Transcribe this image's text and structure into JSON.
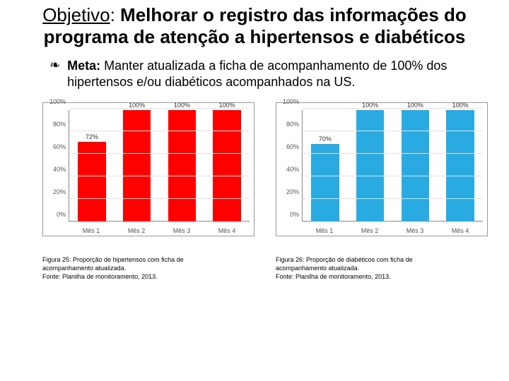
{
  "title": {
    "prefix": "Objetivo",
    "separator": ": ",
    "main": "Melhorar o registro das informações do programa de atenção a hipertensos e diabéticos"
  },
  "meta": {
    "bullet": "❧",
    "label": "Meta: ",
    "text": "Manter atualizada a ficha de acompanhamento de 100% dos hipertensos e/ou diabéticos acompanhados na US."
  },
  "yaxis": {
    "ticks": [
      "0%",
      "20%",
      "40%",
      "60%",
      "80%",
      "100%"
    ],
    "max": 100
  },
  "chart_left": {
    "type": "bar",
    "bar_color": "#ff0000",
    "label_color": "#333333",
    "grid_color": "#e2e2e2",
    "border_color": "#999999",
    "categories": [
      "Mês 1",
      "Mês 2",
      "Mês 3",
      "Mês 4"
    ],
    "values": [
      72,
      100,
      100,
      100
    ],
    "value_labels": [
      "72%",
      "100%",
      "100%",
      "100%"
    ]
  },
  "chart_right": {
    "type": "bar",
    "bar_color": "#29abe2",
    "label_color": "#333333",
    "grid_color": "#e2e2e2",
    "border_color": "#999999",
    "categories": [
      "Mês 1",
      "Mês 2",
      "Mês 3",
      "Mês 4"
    ],
    "values": [
      70,
      100,
      100,
      100
    ],
    "value_labels": [
      "70%",
      "100%",
      "100%",
      "100%"
    ]
  },
  "caption_left": {
    "line1": "Figura 25: Proporção de hipertensos com ficha de",
    "line2": "acompanhamento atualizada.",
    "line3": "Fonte: Planilha de monitoramento, 2013."
  },
  "caption_right": {
    "line1": "Figura 26: Proporção de diabéticos com ficha de",
    "line2": "acompanhamento atualizada.",
    "line3": "Fonte: Planilha de monitoramento, 2013."
  }
}
